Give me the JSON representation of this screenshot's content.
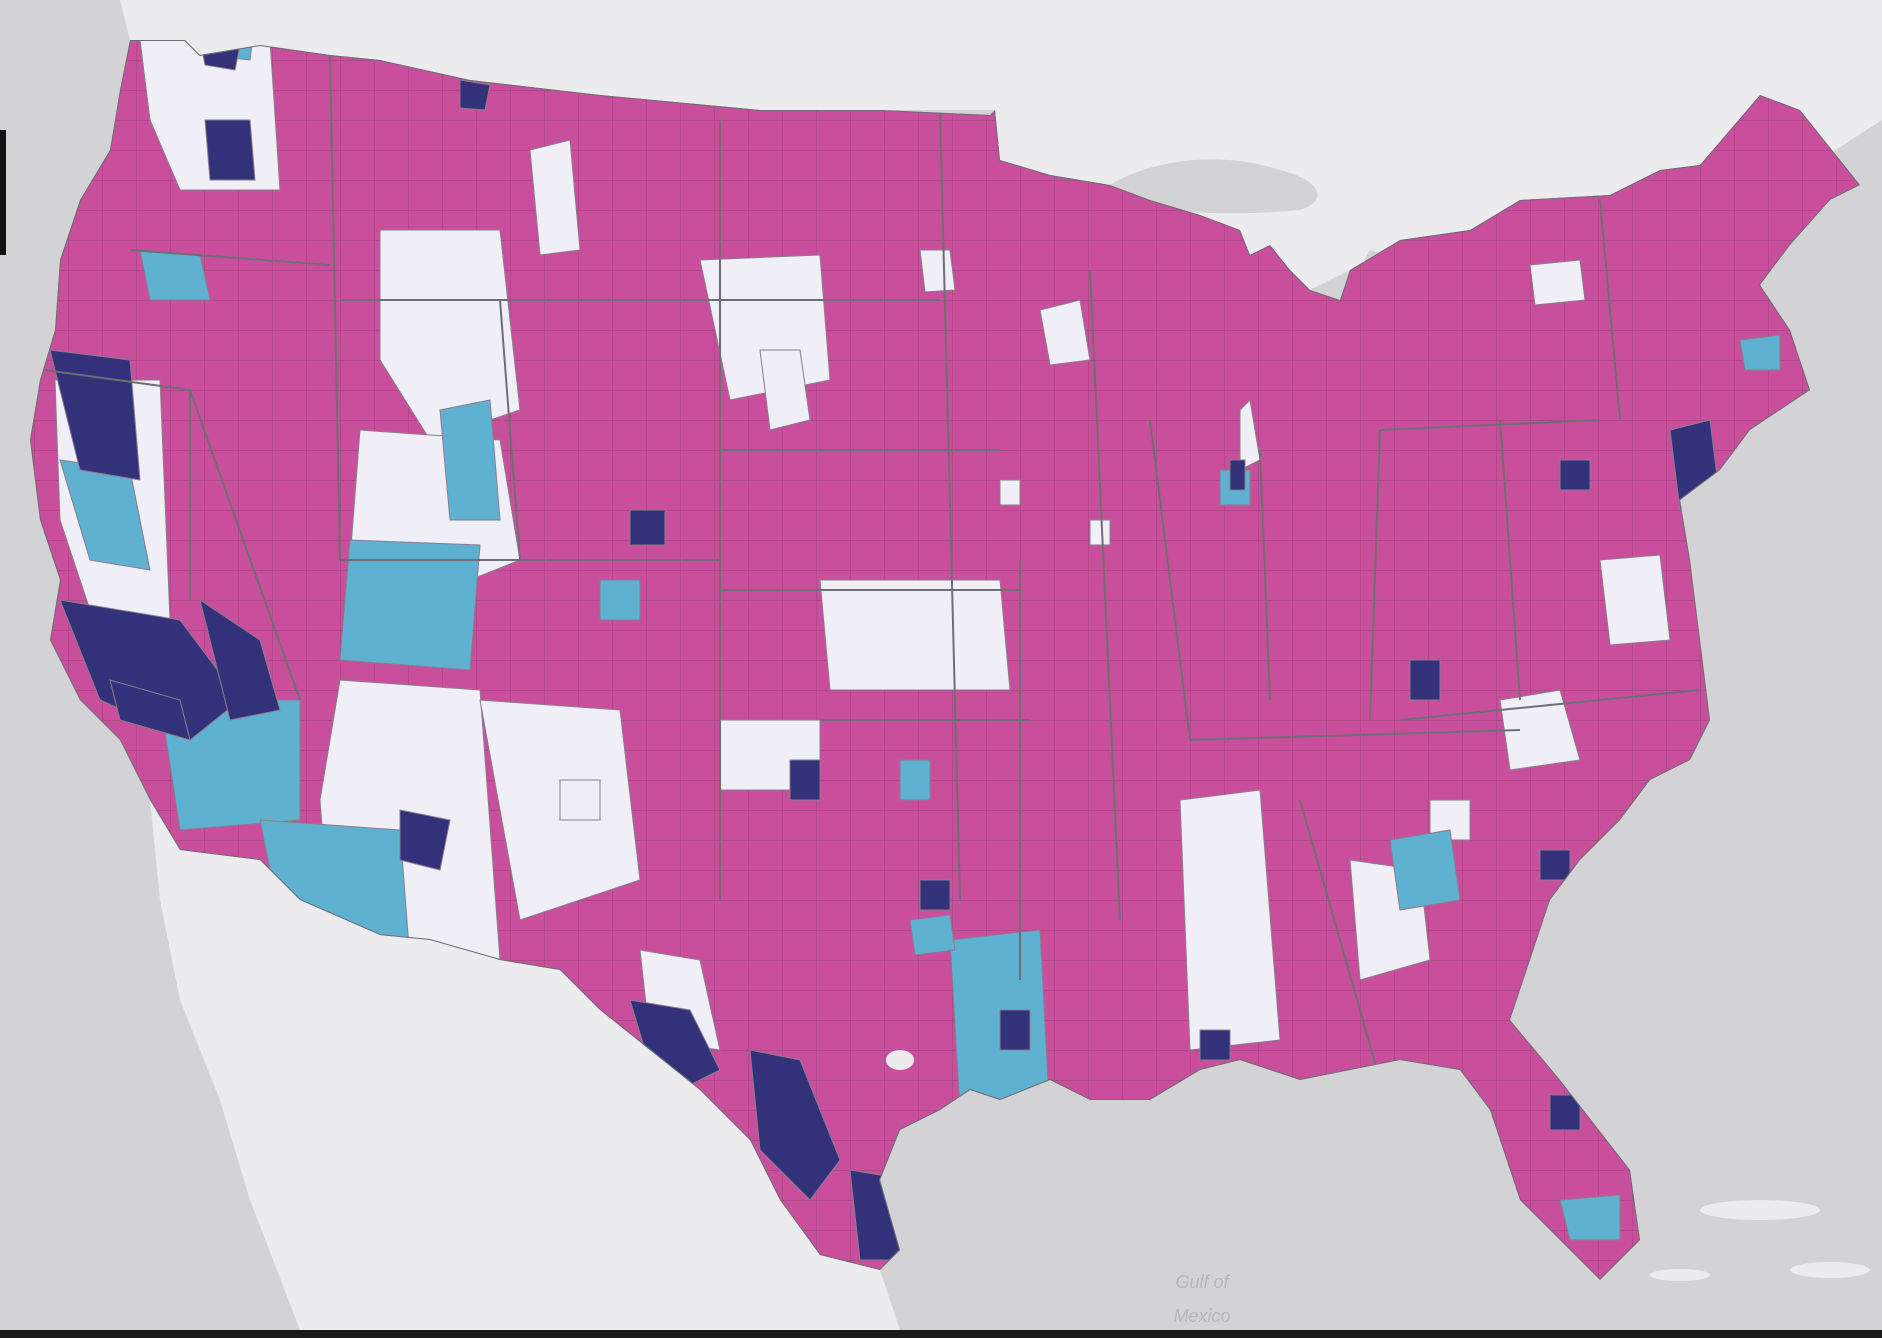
{
  "map": {
    "water_label_line1": "Gulf of",
    "water_label_line2": "Mexico",
    "colors": {
      "water": "#d3d3d6",
      "land_foreign": "#ececee",
      "county_high": "#c94f9d",
      "county_low": "#f0eef6",
      "county_light_blue": "#5fb1d1",
      "county_dark_navy": "#33317a",
      "county_border": "#8a7d8c",
      "state_border": "#6e6e76"
    }
  }
}
